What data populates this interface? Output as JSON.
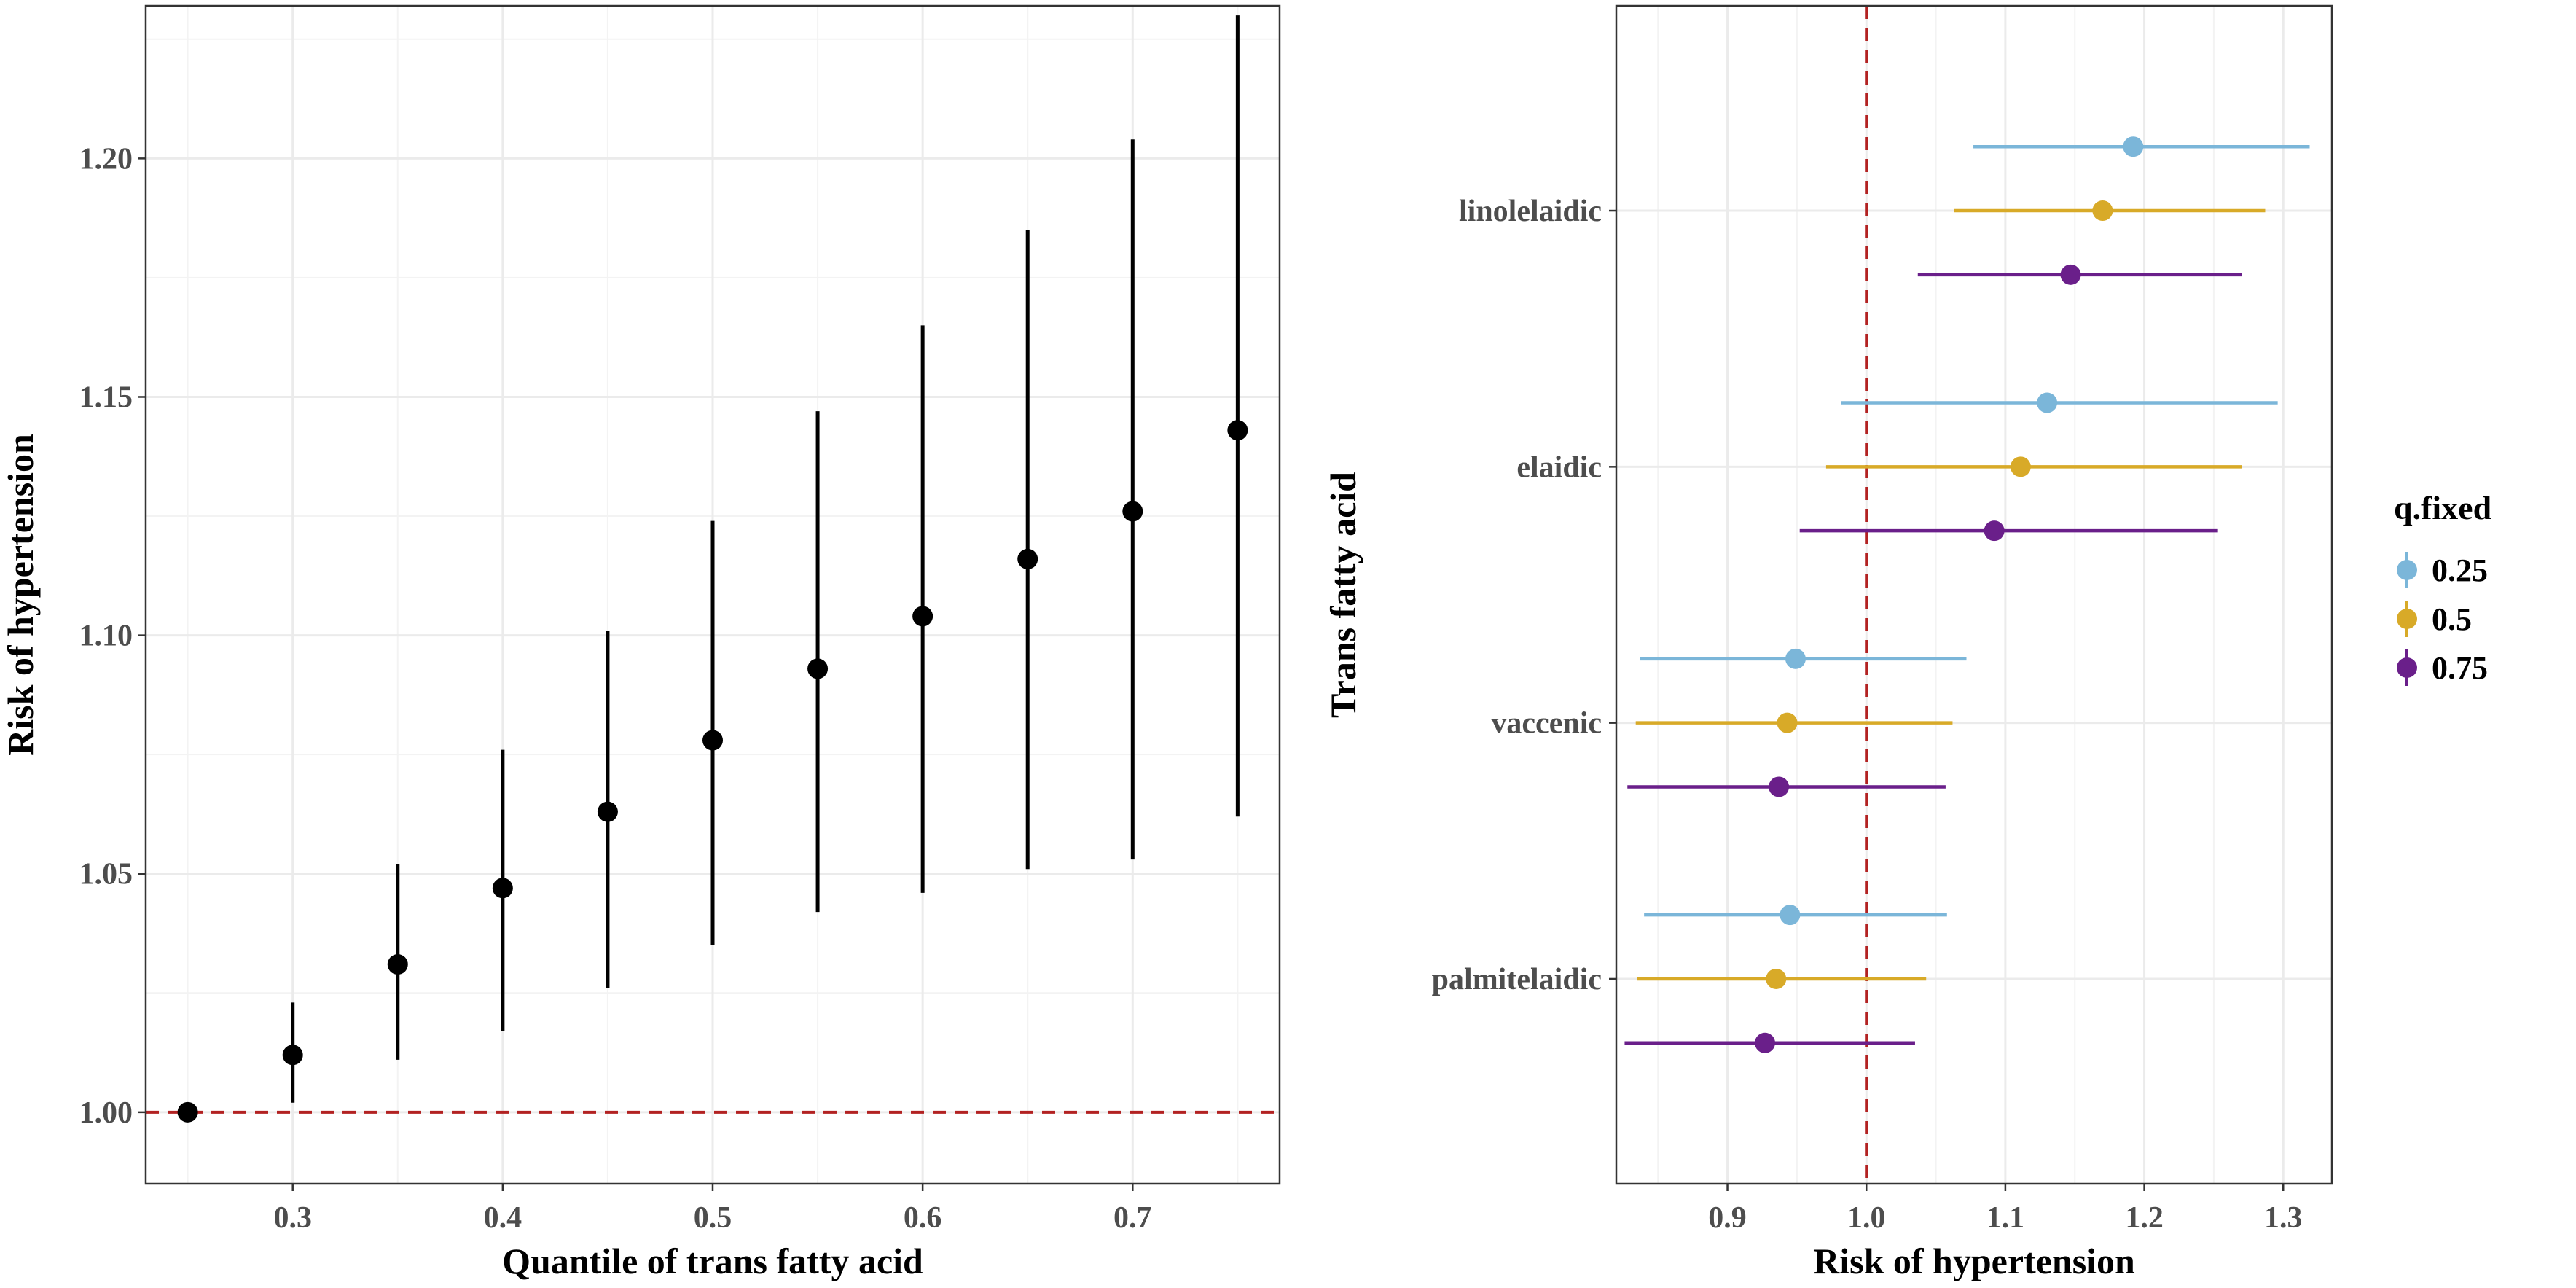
{
  "colors": {
    "point": "#000000",
    "ref_line": "#b22222",
    "q025": "#7bb6d9",
    "q05": "#d8aa28",
    "q075": "#6a1f8a"
  },
  "chart_data": [
    {
      "type": "scatter",
      "subtype": "pointrange",
      "xlabel": "Quantile of trans fatty acid",
      "ylabel": "Risk of hypertension",
      "xlim": [
        0.23,
        0.77
      ],
      "ylim": [
        0.985,
        1.232
      ],
      "x_ticks": [
        0.3,
        0.4,
        0.5,
        0.6,
        0.7
      ],
      "x_tick_labels": [
        "0.3",
        "0.4",
        "0.5",
        "0.6",
        "0.7"
      ],
      "y_ticks": [
        1.0,
        1.05,
        1.1,
        1.15,
        1.2
      ],
      "y_tick_labels": [
        "1.00",
        "1.05",
        "1.10",
        "1.15",
        "1.20"
      ],
      "reference_line": {
        "axis": "y",
        "value": 1.0,
        "style": "dashed"
      },
      "points": [
        {
          "x": 0.25,
          "y": 1.0,
          "lo": 1.0,
          "hi": 1.0
        },
        {
          "x": 0.3,
          "y": 1.012,
          "lo": 1.002,
          "hi": 1.023
        },
        {
          "x": 0.35,
          "y": 1.031,
          "lo": 1.011,
          "hi": 1.052
        },
        {
          "x": 0.4,
          "y": 1.047,
          "lo": 1.017,
          "hi": 1.076
        },
        {
          "x": 0.45,
          "y": 1.063,
          "lo": 1.026,
          "hi": 1.101
        },
        {
          "x": 0.5,
          "y": 1.078,
          "lo": 1.035,
          "hi": 1.124
        },
        {
          "x": 0.55,
          "y": 1.093,
          "lo": 1.042,
          "hi": 1.147
        },
        {
          "x": 0.6,
          "y": 1.104,
          "lo": 1.046,
          "hi": 1.165
        },
        {
          "x": 0.65,
          "y": 1.116,
          "lo": 1.051,
          "hi": 1.185
        },
        {
          "x": 0.7,
          "y": 1.126,
          "lo": 1.053,
          "hi": 1.204
        },
        {
          "x": 0.75,
          "y": 1.143,
          "lo": 1.062,
          "hi": 1.23
        }
      ]
    },
    {
      "type": "scatter",
      "subtype": "horizontal-pointrange",
      "xlabel": "Risk of hypertension",
      "ylabel": "Trans fatty acid",
      "xlim": [
        0.82,
        1.335
      ],
      "x_ticks": [
        0.9,
        1.0,
        1.1,
        1.2,
        1.3
      ],
      "x_tick_labels": [
        "0.9",
        "1.0",
        "1.1",
        "1.2",
        "1.3"
      ],
      "categories": [
        "linolelaidic",
        "elaidic",
        "vaccenic",
        "palmitelaidic"
      ],
      "reference_line": {
        "axis": "x",
        "value": 1.0,
        "style": "dashed"
      },
      "legend": {
        "title": "q.fixed",
        "position": "right",
        "entries": [
          "0.25",
          "0.5",
          "0.75"
        ]
      },
      "series": [
        {
          "name": "0.25",
          "color_key": "q025",
          "offset": -1,
          "values": [
            {
              "category": "linolelaidic",
              "estimate": 1.192,
              "lo": 1.077,
              "hi": 1.319
            },
            {
              "category": "elaidic",
              "estimate": 1.13,
              "lo": 0.982,
              "hi": 1.296
            },
            {
              "category": "vaccenic",
              "estimate": 0.949,
              "lo": 0.837,
              "hi": 1.072
            },
            {
              "category": "palmitelaidic",
              "estimate": 0.945,
              "lo": 0.84,
              "hi": 1.058
            }
          ]
        },
        {
          "name": "0.5",
          "color_key": "q05",
          "offset": 0,
          "values": [
            {
              "category": "linolelaidic",
              "estimate": 1.17,
              "lo": 1.063,
              "hi": 1.287
            },
            {
              "category": "elaidic",
              "estimate": 1.111,
              "lo": 0.971,
              "hi": 1.27
            },
            {
              "category": "vaccenic",
              "estimate": 0.943,
              "lo": 0.834,
              "hi": 1.062
            },
            {
              "category": "palmitelaidic",
              "estimate": 0.935,
              "lo": 0.835,
              "hi": 1.043
            }
          ]
        },
        {
          "name": "0.75",
          "color_key": "q075",
          "offset": 1,
          "values": [
            {
              "category": "linolelaidic",
              "estimate": 1.147,
              "lo": 1.037,
              "hi": 1.27
            },
            {
              "category": "elaidic",
              "estimate": 1.092,
              "lo": 0.952,
              "hi": 1.253
            },
            {
              "category": "vaccenic",
              "estimate": 0.937,
              "lo": 0.828,
              "hi": 1.057
            },
            {
              "category": "palmitelaidic",
              "estimate": 0.927,
              "lo": 0.826,
              "hi": 1.035
            }
          ]
        }
      ]
    }
  ]
}
